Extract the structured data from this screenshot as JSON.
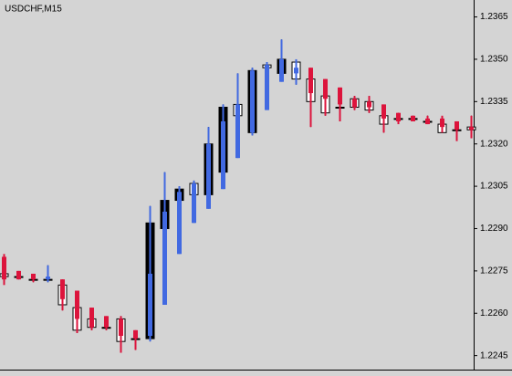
{
  "chart_data": {
    "type": "candlestick",
    "title": "USDCHF,M15",
    "ylim": [
      1.2241,
      1.2371
    ],
    "yticks": [
      1.2365,
      {
        "value": 1.235,
        "label": "1.2350"
      },
      1.2335,
      {
        "value": 1.232,
        "label": "1.2320"
      },
      1.2305,
      {
        "value": 1.229,
        "label": "1.2290"
      },
      1.2275,
      {
        "value": 1.226,
        "label": "1.2260"
      },
      1.2245
    ],
    "series": [
      {
        "style": "candle",
        "up_color": "#000000",
        "down_color": "#ffffff",
        "open": [
          1.2274,
          1.2273,
          1.2272,
          1.2272,
          1.227,
          1.2262,
          1.2258,
          1.2255,
          1.2258,
          1.2251,
          1.2251,
          1.229,
          1.23,
          1.2306,
          1.2302,
          1.231,
          1.2334,
          1.2324,
          1.2348,
          1.2345,
          1.2349,
          1.2343,
          1.2337,
          1.2333,
          1.2336,
          1.2335,
          1.233,
          1.2329,
          1.2329,
          1.2328,
          1.2327,
          1.2325,
          1.2326
        ],
        "high": [
          1.2276,
          1.2274,
          1.2273,
          1.2277,
          1.2272,
          1.2265,
          1.2259,
          1.2257,
          1.2259,
          1.2253,
          1.2298,
          1.231,
          1.2305,
          1.2307,
          1.2326,
          1.2334,
          1.2345,
          1.2347,
          1.2349,
          1.2357,
          1.235,
          1.2344,
          1.2338,
          1.2338,
          1.2337,
          1.2337,
          1.2331,
          1.2331,
          1.233,
          1.233,
          1.2329,
          1.2327,
          1.233
        ],
        "low": [
          1.2272,
          1.2272,
          1.2271,
          1.2271,
          1.2261,
          1.2253,
          1.2254,
          1.2254,
          1.2246,
          1.2247,
          1.225,
          1.2289,
          1.2298,
          1.2301,
          1.23,
          1.2309,
          1.2329,
          1.2323,
          1.2346,
          1.2344,
          1.2341,
          1.2326,
          1.233,
          1.2328,
          1.2332,
          1.2331,
          1.2324,
          1.2327,
          1.2328,
          1.2327,
          1.2324,
          1.2322,
          1.2322
        ],
        "close": [
          1.2273,
          1.2273,
          1.2272,
          1.2272,
          1.2263,
          1.2254,
          1.2255,
          1.2255,
          1.225,
          1.2251,
          1.2292,
          1.23,
          1.2304,
          1.2302,
          1.232,
          1.2333,
          1.233,
          1.2346,
          1.2347,
          1.235,
          1.2343,
          1.2335,
          1.2331,
          1.2333,
          1.2333,
          1.2332,
          1.2327,
          1.2329,
          1.2329,
          1.2328,
          1.2324,
          1.2325,
          1.2325
        ]
      },
      {
        "style": "bar",
        "up_color": "#4169e1",
        "down_color": "#dc143c",
        "open": [
          1.228,
          1.2275,
          1.2274,
          1.2272,
          1.2272,
          1.2268,
          1.2262,
          1.2259,
          1.2258,
          1.2254,
          1.2252,
          1.2263,
          1.2281,
          1.2292,
          1.2297,
          1.2304,
          1.2315,
          1.2324,
          1.2332,
          1.2342,
          1.2345,
          1.2347,
          1.2343,
          1.234,
          1.2336,
          1.2335,
          1.2334,
          1.2331,
          1.233,
          1.2329,
          1.2329,
          1.2328,
          1.2326
        ],
        "high": [
          1.2281,
          1.2275,
          1.2274,
          1.2277,
          1.2272,
          1.2268,
          1.2262,
          1.2259,
          1.2259,
          1.2254,
          1.2298,
          1.231,
          1.2305,
          1.2307,
          1.2326,
          1.2334,
          1.2345,
          1.2347,
          1.2349,
          1.2357,
          1.235,
          1.2347,
          1.2343,
          1.234,
          1.2337,
          1.2337,
          1.2334,
          1.2331,
          1.233,
          1.233,
          1.233,
          1.2328,
          1.233
        ],
        "low": [
          1.227,
          1.2272,
          1.2271,
          1.2271,
          1.2261,
          1.2253,
          1.2254,
          1.2254,
          1.2246,
          1.2247,
          1.225,
          1.2263,
          1.2281,
          1.2292,
          1.2297,
          1.2304,
          1.2315,
          1.2323,
          1.2332,
          1.2342,
          1.2341,
          1.2326,
          1.233,
          1.2328,
          1.2332,
          1.2331,
          1.2324,
          1.2327,
          1.2328,
          1.2327,
          1.2324,
          1.2321,
          1.2322
        ],
        "close": [
          1.2272,
          1.2272,
          1.2272,
          1.2273,
          1.2265,
          1.2258,
          1.2255,
          1.2255,
          1.2252,
          1.2251,
          1.2274,
          1.2296,
          1.2303,
          1.2306,
          1.232,
          1.2328,
          1.2334,
          1.2346,
          1.2348,
          1.235,
          1.2347,
          1.2338,
          1.2336,
          1.2334,
          1.2333,
          1.2333,
          1.2329,
          1.2328,
          1.2328,
          1.2327,
          1.2326,
          1.2325,
          1.2325
        ]
      }
    ]
  }
}
